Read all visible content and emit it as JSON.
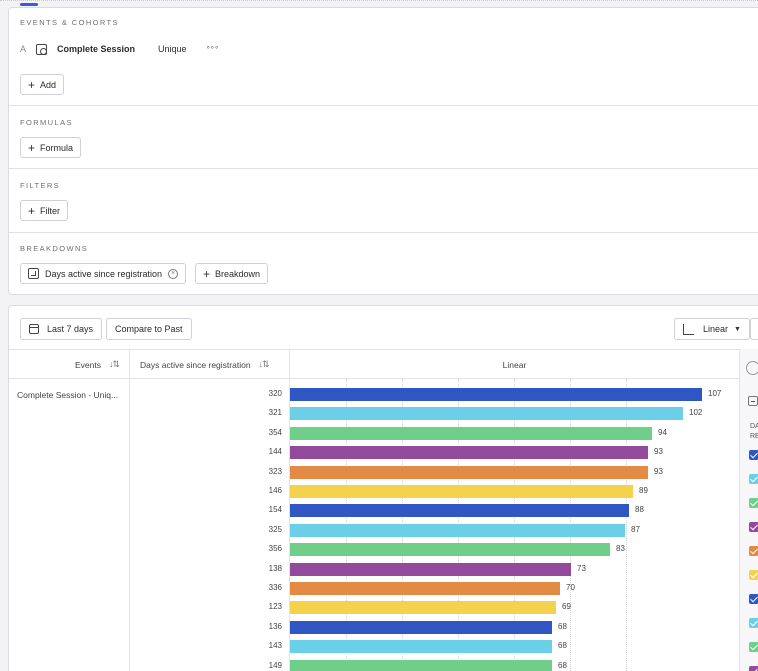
{
  "query": {
    "events_section": {
      "title": "EVENTS & COHORTS",
      "event": {
        "letter": "A",
        "name": "Complete Session",
        "measure": "Unique",
        "more": "°°°"
      },
      "add_label": "Add"
    },
    "formulas_section": {
      "title": "FORMULAS",
      "button_label": "Formula"
    },
    "filters_section": {
      "title": "FILTERS",
      "button_label": "Filter"
    },
    "breakdowns_section": {
      "title": "BREAKDOWNS",
      "chip_label": "Days active since registration",
      "add_label": "Breakdown"
    }
  },
  "toolbar": {
    "date_range_label": "Last 7 days",
    "compare_label": "Compare to Past",
    "scale_label": "Linear"
  },
  "table": {
    "col_events": "Events",
    "col_breakdown": "Days active since registration",
    "col_chart": "Linear",
    "event_cell": "Complete Session - Uniq..."
  },
  "legend": {
    "header_line1": "DA",
    "header_line2": "RE"
  },
  "colors": {
    "blue": "#2f56c2",
    "cyan": "#6ccfe8",
    "green": "#6fcf8a",
    "purple": "#944a9b",
    "orange": "#e38a44",
    "yellow": "#f4d24c"
  },
  "chart_data": {
    "type": "bar",
    "orientation": "horizontal",
    "title": "",
    "categories": [
      "320",
      "321",
      "354",
      "144",
      "323",
      "146",
      "154",
      "325",
      "356",
      "138",
      "336",
      "123",
      "136",
      "143",
      "149"
    ],
    "values": [
      107,
      102,
      94,
      93,
      93,
      89,
      88,
      87,
      83,
      73,
      70,
      69,
      68,
      68,
      68
    ],
    "bar_colors": [
      "#2f56c2",
      "#6ccfe8",
      "#6fcf8a",
      "#944a9b",
      "#e38a44",
      "#f4d24c",
      "#2f56c2",
      "#6ccfe8",
      "#6fcf8a",
      "#944a9b",
      "#e38a44",
      "#f4d24c",
      "#2f56c2",
      "#6ccfe8",
      "#6fcf8a"
    ],
    "xlim": [
      0,
      110
    ],
    "grid": true
  }
}
